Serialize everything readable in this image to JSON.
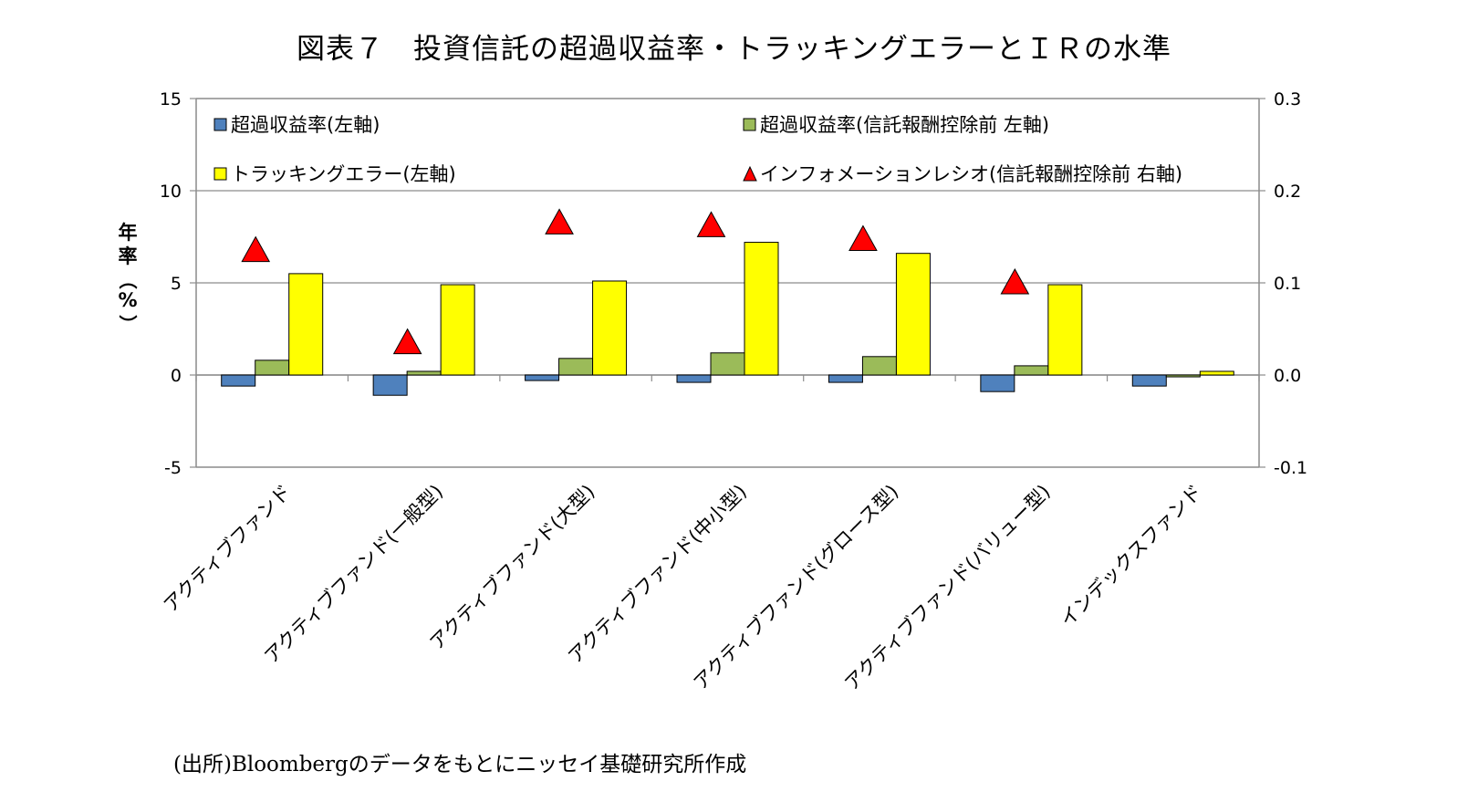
{
  "title": "図表７　投資信託の超過収益率・トラッキングエラーとＩＲの水準",
  "source": "(出所)Bloombergのデータをもとにニッセイ基礎研究所作成",
  "chart_data": {
    "type": "bar",
    "ylabel": "年率（%）",
    "ylim": [
      -5,
      15
    ],
    "y2lim": [
      -0.1,
      0.3
    ],
    "yticks": [
      "-5",
      "0",
      "5",
      "10",
      "15"
    ],
    "y2ticks": [
      "-0.1",
      "0.0",
      "0.1",
      "0.2",
      "0.3"
    ],
    "grid": true,
    "legend_position": "top",
    "categories": [
      "アクティブファンド",
      "アクティブファンド(一般型)",
      "アクティブファンド(大型)",
      "アクティブファンド(中小型)",
      "アクティブファンド(グロース型)",
      "アクティブファンド(バリュー型)",
      "インデックスファンド"
    ],
    "series": [
      {
        "name": "超過収益率(左軸)",
        "kind": "bar",
        "axis": "left",
        "color": "#4f81bd",
        "values": [
          -0.6,
          -1.1,
          -0.3,
          -0.4,
          -0.4,
          -0.9,
          -0.6
        ]
      },
      {
        "name": "超過収益率(信託報酬控除前 左軸)",
        "kind": "bar",
        "axis": "left",
        "color": "#9bbb59",
        "values": [
          0.8,
          0.2,
          0.9,
          1.2,
          1.0,
          0.5,
          -0.1
        ]
      },
      {
        "name": "トラッキングエラー(左軸)",
        "kind": "bar",
        "axis": "left",
        "color": "#ffff00",
        "values": [
          5.5,
          4.9,
          5.1,
          7.2,
          6.6,
          4.9,
          0.2
        ]
      },
      {
        "name": "インフォメーションレシオ(信託報酬控除前 右軸)",
        "kind": "marker",
        "axis": "right",
        "color": "#ff0000",
        "values": [
          0.135,
          0.035,
          0.165,
          0.162,
          0.147,
          0.1,
          null
        ]
      }
    ]
  }
}
